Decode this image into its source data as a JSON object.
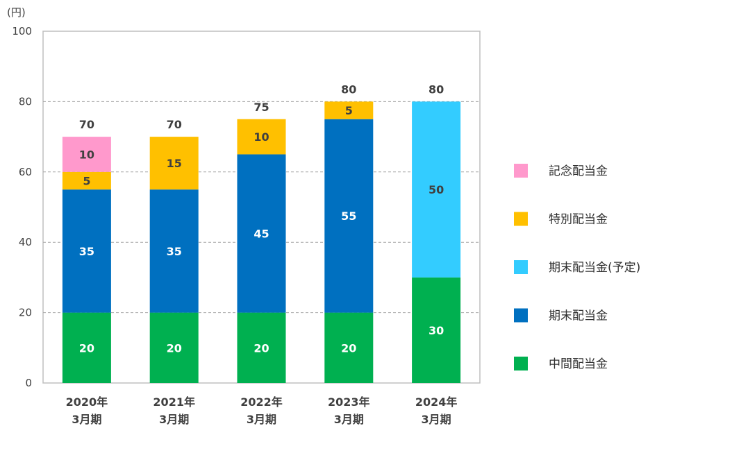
{
  "chart_data": {
    "type": "bar",
    "stacked": true,
    "unit_label": "(円)",
    "categories": [
      [
        "2020年",
        "3月期"
      ],
      [
        "2021年",
        "3月期"
      ],
      [
        "2022年",
        "3月期"
      ],
      [
        "2023年",
        "3月期"
      ],
      [
        "2024年",
        "3月期"
      ]
    ],
    "ylim": [
      0,
      100
    ],
    "yticks": [
      0,
      20,
      40,
      60,
      80,
      100
    ],
    "grid": true,
    "legend_position": "right",
    "series": [
      {
        "name": "中間配当金",
        "color": "#00B050",
        "label_color": "#ffffff",
        "values": [
          20,
          20,
          20,
          20,
          30
        ]
      },
      {
        "name": "期末配当金",
        "color": "#0070C0",
        "label_color": "#ffffff",
        "values": [
          35,
          35,
          45,
          55,
          null
        ]
      },
      {
        "name": "期末配当金(予定)",
        "color": "#33CCFF",
        "label_color": "#404040",
        "values": [
          null,
          null,
          null,
          null,
          50
        ]
      },
      {
        "name": "特別配当金",
        "color": "#FFC000",
        "label_color": "#404040",
        "values": [
          5,
          15,
          10,
          5,
          null
        ]
      },
      {
        "name": "記念配当金",
        "color": "#FF99CC",
        "label_color": "#404040",
        "values": [
          10,
          null,
          null,
          null,
          null
        ]
      }
    ],
    "totals": [
      70,
      70,
      75,
      80,
      80
    ],
    "legend_order": [
      "記念配当金",
      "特別配当金",
      "期末配当金(予定)",
      "期末配当金",
      "中間配当金"
    ]
  }
}
